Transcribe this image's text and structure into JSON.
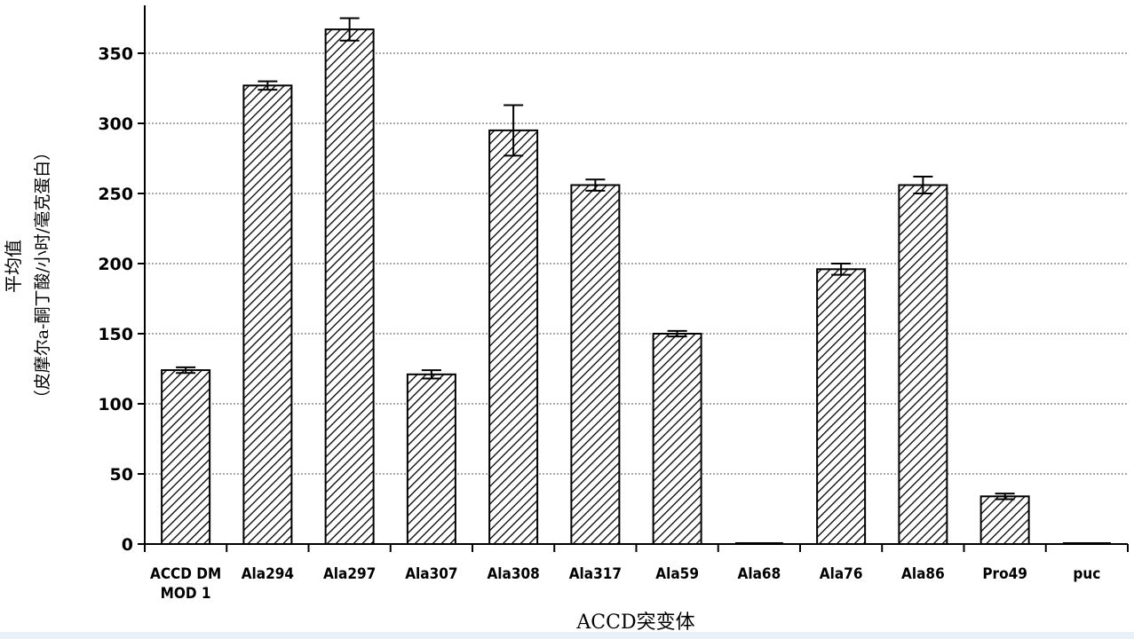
{
  "chart_data": {
    "type": "bar",
    "ylabel_line1": "平均值",
    "ylabel_line2": "（皮摩尔a-酮丁酸/小时/毫克蛋白）",
    "xlabel": "ACCD突变体",
    "ylim": [
      0,
      380
    ],
    "yticks": [
      0,
      50,
      100,
      150,
      200,
      250,
      300,
      350
    ],
    "grid": true,
    "categories": [
      [
        "ACCD DM",
        "MOD 1"
      ],
      [
        "Ala294"
      ],
      [
        "Ala297"
      ],
      [
        "Ala307"
      ],
      [
        "Ala308"
      ],
      [
        "Ala317"
      ],
      [
        "Ala59"
      ],
      [
        "Ala68"
      ],
      [
        "Ala76"
      ],
      [
        "Ala86"
      ],
      [
        "Pro49"
      ],
      [
        "puc"
      ]
    ],
    "values": [
      124,
      327,
      367,
      121,
      295,
      256,
      150,
      0,
      196,
      256,
      34,
      0
    ],
    "error": [
      2,
      3,
      8,
      3,
      18,
      4,
      2,
      0,
      4,
      6,
      2,
      0
    ]
  },
  "colors": {
    "axis": "#000000",
    "bar_stroke": "#000000",
    "hatch": "#000000",
    "grid": "#555555",
    "bottom_strip": "#eaf0f7"
  }
}
